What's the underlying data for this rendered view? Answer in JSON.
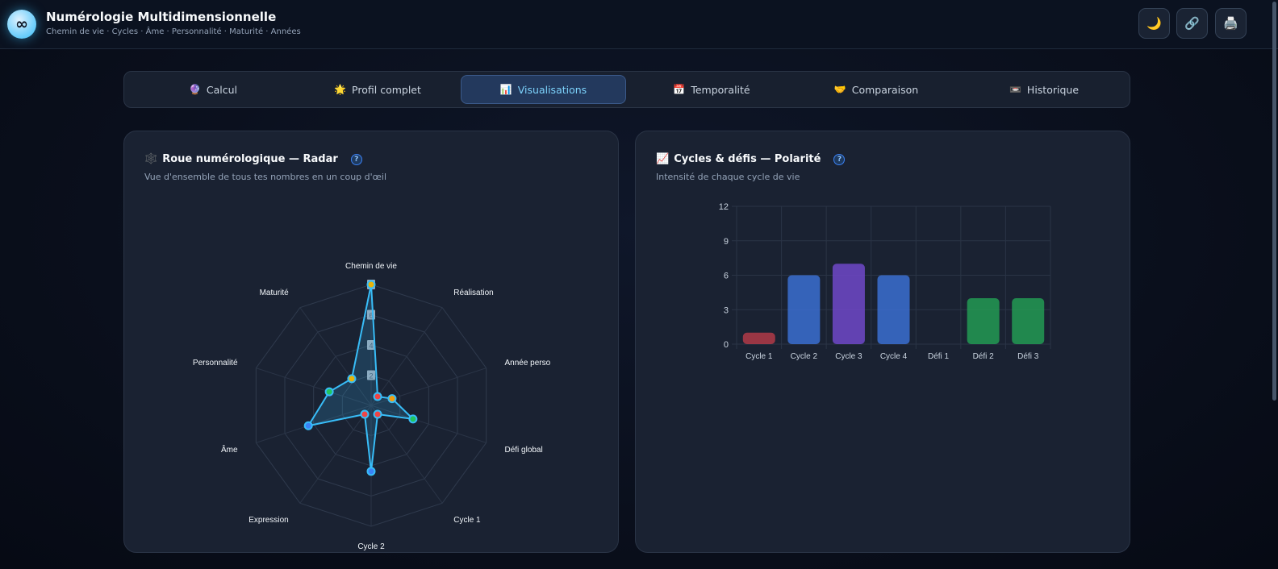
{
  "header": {
    "logo_symbol": "∞",
    "title": "Numérologie Multidimensionnelle",
    "subtitle": "Chemin de vie · Cycles · Âme · Personnalité · Maturité · Années",
    "buttons": [
      {
        "icon": "moon-icon",
        "glyph": "🌙"
      },
      {
        "icon": "link-icon",
        "glyph": "🔗"
      },
      {
        "icon": "printer-icon",
        "glyph": "🖨️"
      }
    ]
  },
  "tabs": [
    {
      "icon": "crystal-ball-icon",
      "glyph": "🔮",
      "label": "Calcul"
    },
    {
      "icon": "sun-icon",
      "glyph": "🌟",
      "label": "Profil complet"
    },
    {
      "icon": "bar-chart-icon",
      "glyph": "📊",
      "label": "Visualisations",
      "active": true
    },
    {
      "icon": "calendar-icon",
      "glyph": "📅",
      "label": "Temporalité"
    },
    {
      "icon": "handshake-icon",
      "glyph": "🤝",
      "label": "Comparaison"
    },
    {
      "icon": "archive-icon",
      "glyph": "📼",
      "label": "Historique"
    }
  ],
  "radar_card": {
    "icon": "wheel-icon",
    "glyph": "🕸️",
    "title": "Roue numérologique — Radar",
    "help": "?",
    "subtitle": "Vue d'ensemble de tous tes nombres en un coup d'œil"
  },
  "bar_card": {
    "icon": "chart-up-icon",
    "glyph": "📈",
    "title": "Cycles & défis — Polarité",
    "help": "?",
    "subtitle": "Intensité de chaque cycle de vie"
  },
  "chart_data": [
    {
      "type": "radar",
      "axes": [
        "Chemin de vie",
        "Réalisation",
        "Année perso",
        "Défi global",
        "Cycle 1",
        "Cycle 2",
        "Expression",
        "Âme",
        "Personnalité",
        "Maturité"
      ],
      "tick_labels": [
        "2",
        "4",
        "6",
        "8"
      ],
      "range": [
        0,
        11
      ],
      "values": [
        11,
        1,
        2,
        4,
        1,
        6,
        1,
        6,
        4,
        3
      ],
      "point_colors": [
        "#eab308",
        "#ef4444",
        "#f59e0b",
        "#22c55e",
        "#ef4444",
        "#3b82f6",
        "#ef4444",
        "#3b82f6",
        "#22c55e",
        "#eab308"
      ],
      "line_color": "#38bdf8"
    },
    {
      "type": "bar",
      "categories": [
        "Cycle 1",
        "Cycle 2",
        "Cycle 3",
        "Cycle 4",
        "Défi 1",
        "Défi 2",
        "Défi 3"
      ],
      "values": [
        1,
        6,
        7,
        6,
        0,
        4,
        4
      ],
      "colors": [
        "#b13a48",
        "#3b6fd1",
        "#7048c9",
        "#3b6fd1",
        "#3b6fd1",
        "#239a53",
        "#239a53"
      ],
      "ylim": [
        0,
        12
      ],
      "yticks": [
        0,
        3,
        6,
        9,
        12
      ]
    }
  ]
}
